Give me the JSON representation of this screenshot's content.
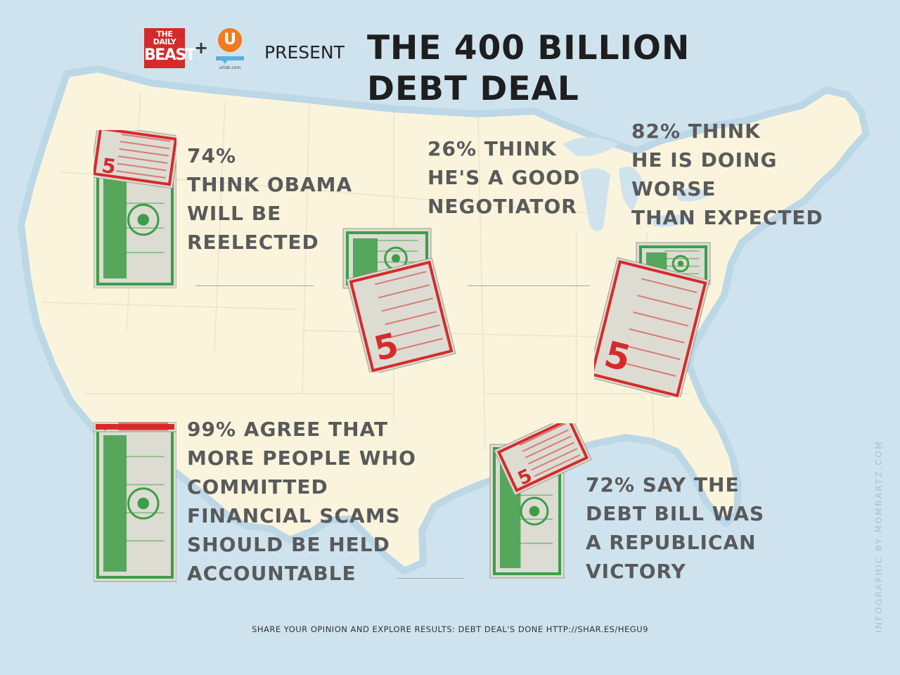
{
  "header": {
    "daily_beast_logo": [
      "THE DAILY",
      "BEAST"
    ],
    "plus": "+",
    "urtak_logo": {
      "letter": "U",
      "site": "urtak.com"
    },
    "present": "PRESENT",
    "title_lines": [
      "THE 400 BILLION",
      "DEBT DEAL"
    ]
  },
  "stats": [
    {
      "lines": [
        "74%",
        "THINK OBAMA",
        "WILL BE",
        "REELECTED"
      ]
    },
    {
      "lines": [
        "26% THINK",
        "HE'S A GOOD",
        "NEGOTIATOR"
      ]
    },
    {
      "lines": [
        "82% THINK",
        "HE IS DOING",
        "WORSE",
        "THAN EXPECTED"
      ]
    },
    {
      "lines": [
        "99% AGREE THAT",
        "MORE PEOPLE WHO",
        "COMMITTED",
        "FINANCIAL SCAMS",
        "SHOULD BE HELD",
        "ACCOUNTABLE"
      ]
    },
    {
      "lines": [
        "72% SAY THE",
        "DEBT BILL WAS",
        "A REPUBLICAN",
        "VICTORY"
      ]
    }
  ],
  "bill": {
    "denomination": "5",
    "green": "#3d9e47",
    "red": "#d62b2b",
    "paper": "#dcdcd2"
  },
  "colors": {
    "ocean": "#cfe3ee",
    "land": "#fbf4dc",
    "text": "#585a5b"
  },
  "footer": "SHARE YOUR OPINION AND EXPLORE RESULTS: DEBT DEAL'S DONE HTTP://SHAR.ES/HEGU9",
  "credit": "INFOGRAPHIC BY MOMBARTZ.COM"
}
